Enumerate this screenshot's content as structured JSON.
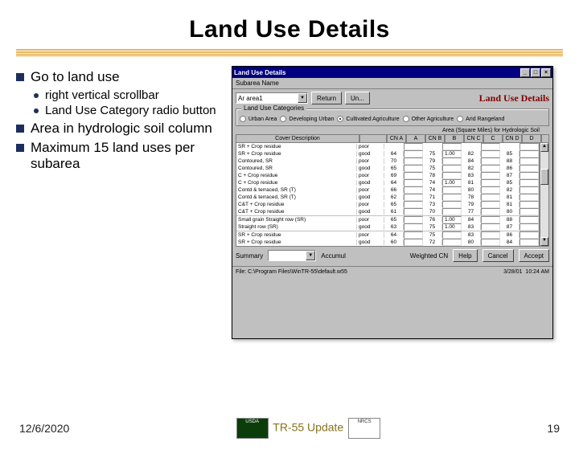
{
  "slide": {
    "title": "Land Use Details",
    "date": "12/6/2020",
    "footer_center": "TR-55 Update",
    "page_number": "19"
  },
  "bullets": {
    "b1": "Go to land use",
    "b1a": "right vertical scrollbar",
    "b1b": "Land Use Category radio button",
    "b2": "Area in hydrologic soil column",
    "b3": "Maximum 15 land uses per subarea"
  },
  "app": {
    "titlebar": "Land Use Details",
    "subarea_label": "Subarea Name",
    "header_text": "Land Use Details",
    "subarea_combo": "Ar  area1",
    "btn_return": "Return",
    "btn_un": "Un...",
    "groupbox_label": "Land Use Categories",
    "radios": [
      "Urban Area",
      "Developing Urban",
      "Cultivated Agriculture",
      "Other Agriculture",
      "Arid Rangeland"
    ],
    "selected_radio": 2,
    "area_header": "Area (Square Miles) for Hydrologic Soil",
    "columns": [
      "Cover Description",
      "",
      "CN A",
      "A",
      "CN B",
      "B",
      "CN C",
      "C",
      "CN D",
      "D"
    ],
    "rows": [
      {
        "desc": "SR + Crop residue",
        "cond": "poor",
        "cn": [
          "",
          "",
          "",
          "",
          "",
          "",
          ""
        ],
        "ar": [
          "",
          "",
          "",
          ""
        ]
      },
      {
        "desc": "SR + Crop residue",
        "cond": "good",
        "cn": [
          "",
          "64",
          "75",
          "82",
          "85"
        ],
        "ar": [
          "",
          "1.00",
          "",
          ""
        ]
      },
      {
        "desc": "Contoured, SR",
        "cond": "poor",
        "cn": [
          "",
          "70",
          "79",
          "84",
          "88"
        ],
        "ar": [
          "",
          "",
          "",
          ""
        ]
      },
      {
        "desc": "Contoured, SR",
        "cond": "good",
        "cn": [
          "",
          "65",
          "75",
          "82",
          "86"
        ],
        "ar": [
          "",
          "",
          "",
          ""
        ]
      },
      {
        "desc": "C + Crop residue",
        "cond": "poor",
        "cn": [
          "",
          "69",
          "78",
          "83",
          "87"
        ],
        "ar": [
          "",
          "",
          "",
          ""
        ]
      },
      {
        "desc": "C + Crop residue",
        "cond": "good",
        "cn": [
          "",
          "64",
          "74",
          "81",
          "85"
        ],
        "ar": [
          "",
          "1.00",
          "",
          ""
        ]
      },
      {
        "desc": "Contd & terraced, SR (T)",
        "cond": "poor",
        "cn": [
          "",
          "66",
          "74",
          "80",
          "82"
        ],
        "ar": [
          "",
          "",
          "",
          ""
        ]
      },
      {
        "desc": "Contd & terraced, SR (T)",
        "cond": "good",
        "cn": [
          "",
          "62",
          "71",
          "78",
          "81"
        ],
        "ar": [
          "",
          "",
          "",
          ""
        ]
      },
      {
        "desc": "C&T + Crop residue",
        "cond": "poor",
        "cn": [
          "",
          "65",
          "73",
          "79",
          "81"
        ],
        "ar": [
          "",
          "",
          "",
          ""
        ]
      },
      {
        "desc": "C&T + Crop residue",
        "cond": "good",
        "cn": [
          "",
          "61",
          "70",
          "77",
          "80"
        ],
        "ar": [
          "",
          "",
          "",
          ""
        ]
      }
    ],
    "midrows": [
      {
        "desc": "Small grain  Straight row (SR)",
        "cond": "poor",
        "cn": [
          "",
          "65",
          "76",
          "84",
          "88"
        ],
        "ar": [
          "",
          "1.00",
          "",
          ""
        ]
      },
      {
        "desc": "Straight row (SR)",
        "cond": "good",
        "cn": [
          "",
          "63",
          "75",
          "83",
          "87"
        ],
        "ar": [
          "",
          "1.00",
          "",
          ""
        ]
      }
    ],
    "botrows": [
      {
        "desc": "SR + Crop residue",
        "cond": "poor",
        "cn": [
          "",
          "64",
          "75",
          "83",
          "86"
        ],
        "ar": [
          "",
          "",
          "",
          ""
        ]
      },
      {
        "desc": "SR + Crop residue",
        "cond": "good",
        "cn": [
          "",
          "60",
          "72",
          "80",
          "84"
        ],
        "ar": [
          "",
          "",
          "",
          ""
        ]
      }
    ],
    "summary_label": "Summary",
    "summary_combo": "",
    "accum_label": "Accumul",
    "weighted_label": "Weighted CN",
    "btn_help": "Help",
    "btn_cancel": "Cancel",
    "btn_accept": "Accept",
    "status_path": "File: C:\\Program Files\\WinTR-55\\default.w55",
    "status_date": "3/28/01",
    "status_time": "10:24 AM"
  },
  "colors": {
    "navy": "#000080",
    "win_gray": "#c0c0c0",
    "maroon": "#800000",
    "bullet_navy": "#1c2f5c",
    "gold": "#e0991e"
  }
}
